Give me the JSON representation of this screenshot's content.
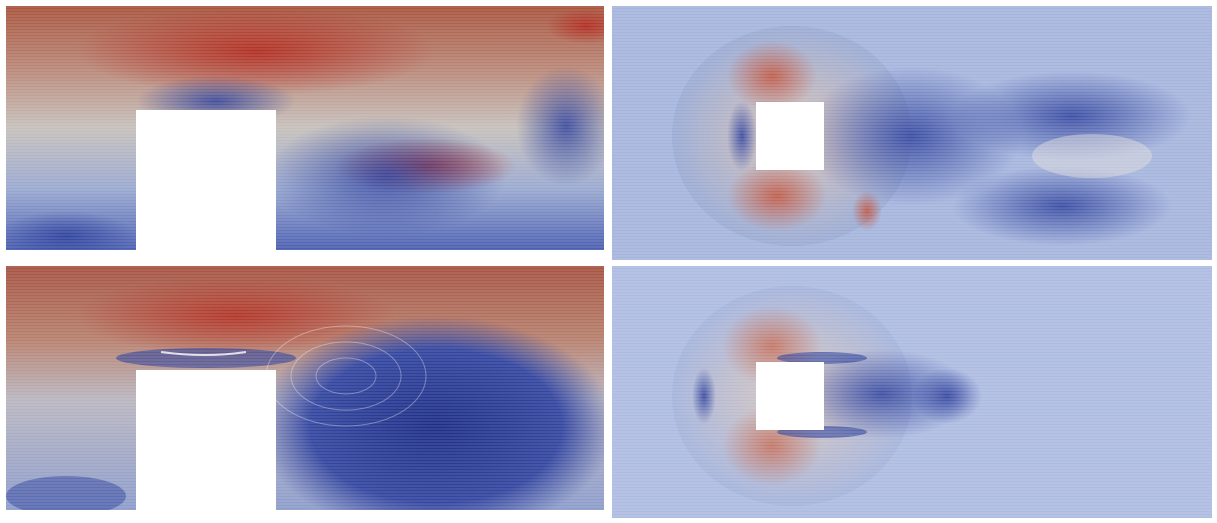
{
  "figure": {
    "panels": [
      {
        "id": "top-left",
        "description_key": "turbulent-flow-over-step-side-view"
      },
      {
        "id": "top-right",
        "description_key": "turbulent-flow-around-square-top-view"
      },
      {
        "id": "bottom-left",
        "description_key": "mean-flow-over-step-side-view"
      },
      {
        "id": "bottom-right",
        "description_key": "mean-flow-around-square-top-view"
      }
    ],
    "colors": {
      "high": "#b2281d",
      "mid": "#d9d5cf",
      "low": "#2a3d9a",
      "obstacle": "#ffffff"
    }
  }
}
